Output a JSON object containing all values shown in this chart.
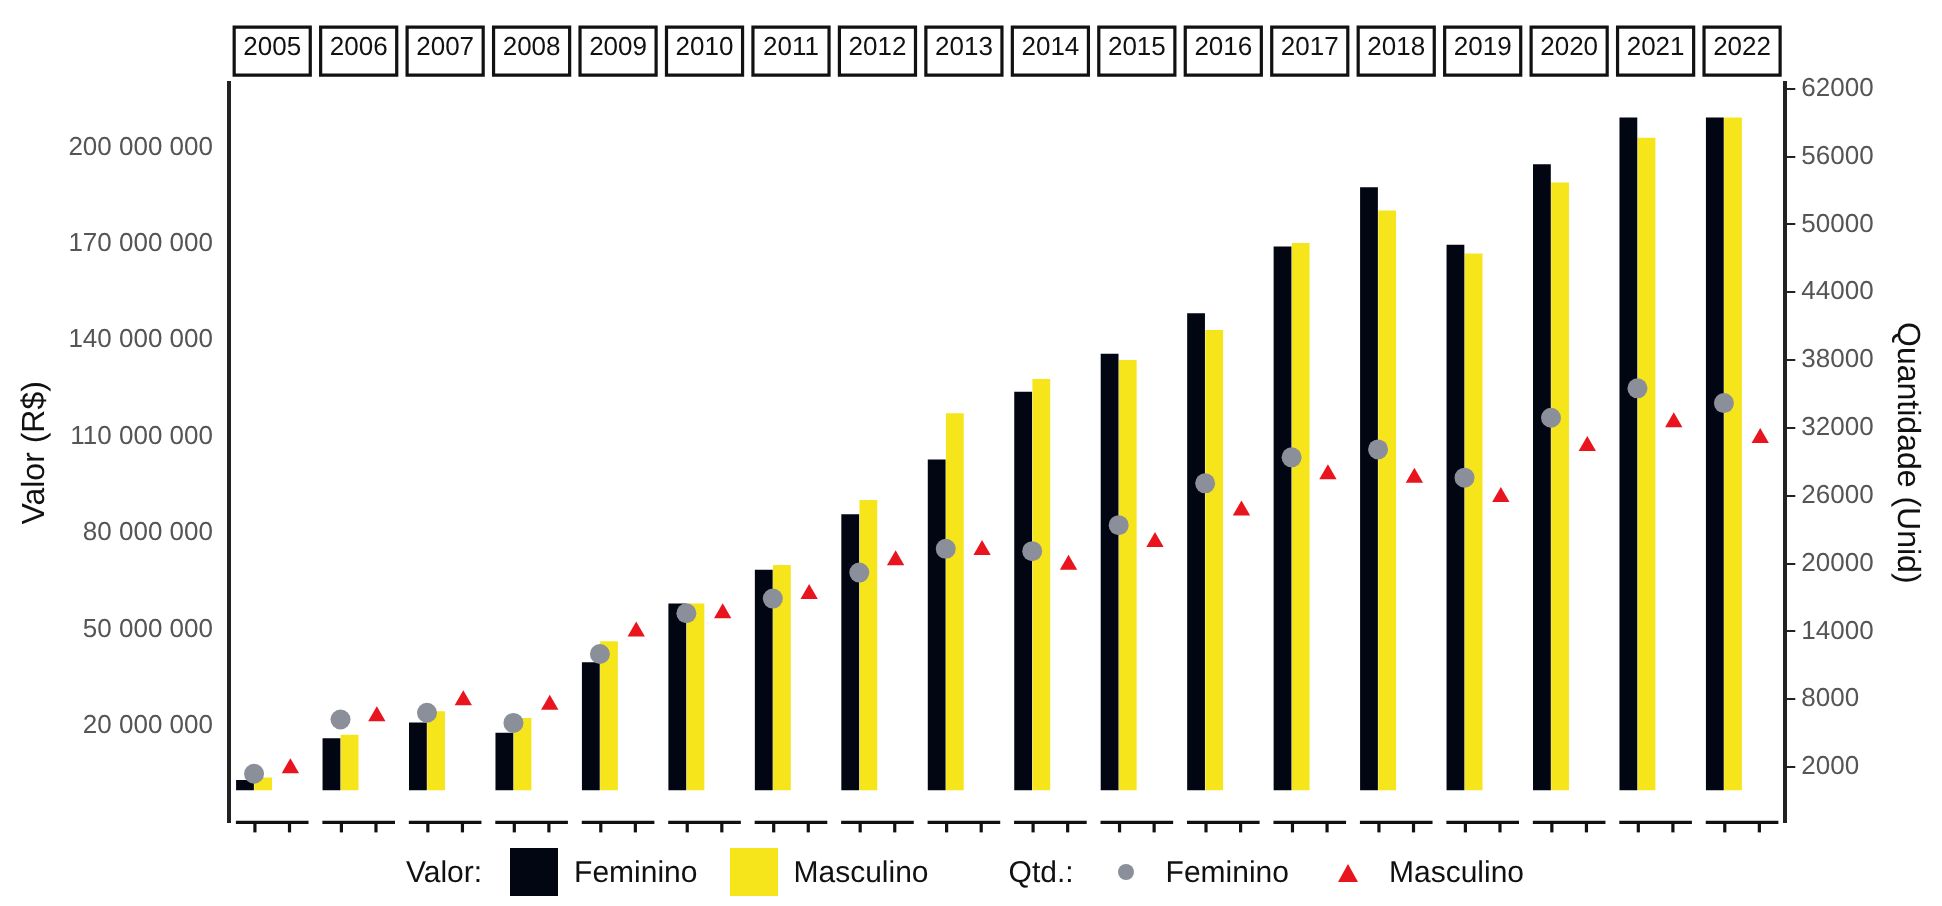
{
  "chart_data": {
    "type": "bar",
    "ylabel": "Valor (R$)",
    "y2label": "Quantidade (Unid)",
    "legend_title": "Valor:",
    "annotations": [
      "Qtd.:"
    ],
    "categories": [
      "2005",
      "2006",
      "2007",
      "2008",
      "2009",
      "2010",
      "2011",
      "2012",
      "2013",
      "2014",
      "2015",
      "2016",
      "2017",
      "2018",
      "2019",
      "2020",
      "2021",
      "2022"
    ],
    "series": [
      {
        "name": "Feminino",
        "color": "#020612",
        "values": [
          3200000,
          16200000,
          21100000,
          17900000,
          39800000,
          58100000,
          68600000,
          85900000,
          102900000,
          124000000,
          135800000,
          148400000,
          169200000,
          187600000,
          169700000,
          194800000,
          209300000,
          209300000
        ]
      },
      {
        "name": "Masculino",
        "color": "#f7e51c",
        "values": [
          4000000,
          17300000,
          24600000,
          22500000,
          46400000,
          58100000,
          70100000,
          90300000,
          117300000,
          128000000,
          133900000,
          143200000,
          170300000,
          180400000,
          167000000,
          189100000,
          203000000,
          209300000
        ]
      },
      {
        "name": "Feminino",
        "type": "scatter",
        "axis": "y2",
        "marker": "circle",
        "color": "#8a8f99",
        "values": [
          1400,
          6200,
          6800,
          5900,
          12000,
          15600,
          16900,
          19200,
          21300,
          21100,
          23400,
          27100,
          29400,
          30100,
          27600,
          32900,
          35500,
          34200
        ]
      },
      {
        "name": "Masculino",
        "type": "scatter",
        "axis": "y2",
        "marker": "triangle",
        "color": "#e8141e",
        "values": [
          1900,
          6500,
          7900,
          7500,
          14000,
          15600,
          17300,
          20300,
          21200,
          19900,
          21900,
          24700,
          27900,
          27600,
          25900,
          30400,
          32500,
          31100
        ]
      }
    ],
    "ylim": [
      -10000000,
      220000000
    ],
    "yticks": [
      {
        "value": 20000000,
        "label": "20 000 000"
      },
      {
        "value": 50000000,
        "label": "50 000 000"
      },
      {
        "value": 80000000,
        "label": "80 000 000"
      },
      {
        "value": 110000000,
        "label": "110 000 000"
      },
      {
        "value": 140000000,
        "label": "140 000 000"
      },
      {
        "value": 170000000,
        "label": "170 000 000"
      },
      {
        "value": 200000000,
        "label": "200 000 000"
      }
    ],
    "y2lim": [
      -2900,
      62500
    ],
    "y2ticks": [
      2000,
      8000,
      14000,
      20000,
      26000,
      32000,
      38000,
      44000,
      50000,
      56000,
      62000
    ],
    "grid": false,
    "legend": "bottom"
  }
}
